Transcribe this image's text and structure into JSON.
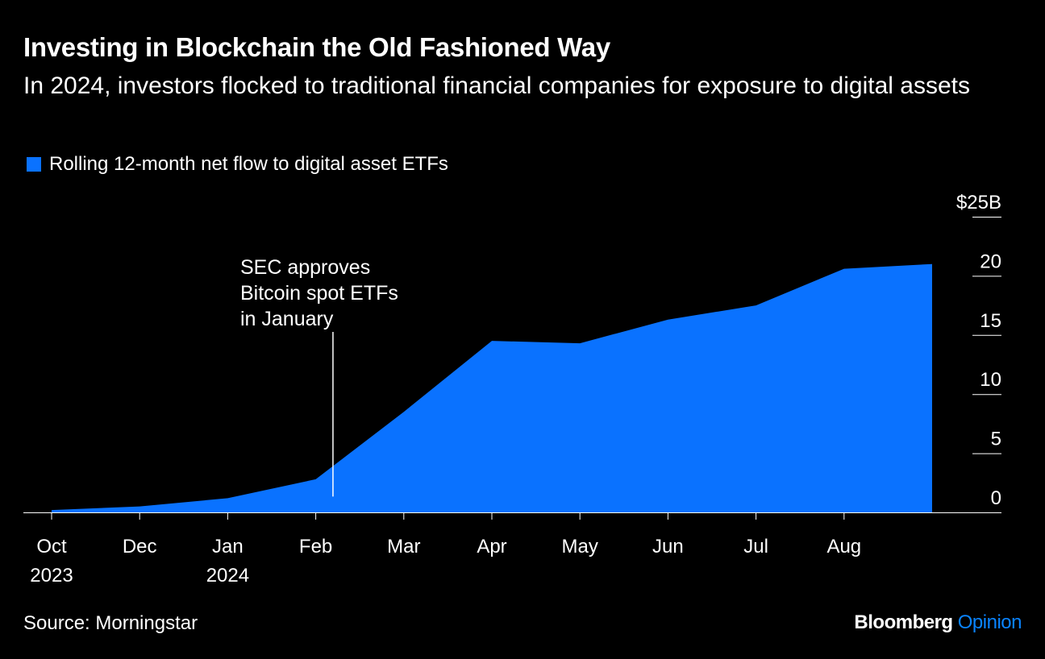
{
  "header": {
    "title": "Investing in Blockchain the Old Fashioned Way",
    "subtitle": "In 2024, investors flocked to traditional financial companies for exposure to digital assets"
  },
  "legend": {
    "label": "Rolling 12-month net flow to digital asset ETFs"
  },
  "colors": {
    "series": "#0a72ff",
    "background": "#000000",
    "text": "#ffffff",
    "brand_accent": "#0a84ff"
  },
  "annotation": {
    "lines": [
      "SEC approves",
      "Bitcoin spot ETFs",
      "in January"
    ],
    "x": 3.2
  },
  "footer": {
    "source": "Source: Morningstar",
    "brand": "Bloomberg",
    "brand_suffix": "Opinion"
  },
  "chart_data": {
    "type": "area",
    "series": [
      {
        "name": "Rolling 12-month net flow to digital asset ETFs",
        "x": [
          0,
          1,
          2,
          3,
          4,
          5,
          6,
          7,
          8,
          9,
          10
        ],
        "values": [
          0.2,
          0.5,
          1.2,
          2.8,
          8.5,
          14.5,
          14.3,
          16.3,
          17.5,
          20.6,
          21.0
        ]
      }
    ],
    "x_ticks": [
      {
        "x": 0,
        "label": [
          "Oct",
          "2023"
        ]
      },
      {
        "x": 1,
        "label": [
          "Dec"
        ]
      },
      {
        "x": 2,
        "label": [
          "Jan",
          "2024"
        ]
      },
      {
        "x": 3,
        "label": [
          "Feb"
        ]
      },
      {
        "x": 4,
        "label": [
          "Mar"
        ]
      },
      {
        "x": 5,
        "label": [
          "Apr"
        ]
      },
      {
        "x": 6,
        "label": [
          "May"
        ]
      },
      {
        "x": 7,
        "label": [
          "Jun"
        ]
      },
      {
        "x": 8,
        "label": [
          "Jul"
        ]
      },
      {
        "x": 9,
        "label": [
          "Aug"
        ]
      }
    ],
    "y_ticks": [
      {
        "value": 0,
        "label": "0"
      },
      {
        "value": 5,
        "label": "5"
      },
      {
        "value": 10,
        "label": "10"
      },
      {
        "value": 15,
        "label": "15"
      },
      {
        "value": 20,
        "label": "20"
      },
      {
        "value": 25,
        "label": "$25B"
      }
    ],
    "ylim": [
      0,
      25
    ],
    "xlim": [
      0,
      10
    ],
    "y_axis_position": "right",
    "grid": false
  }
}
